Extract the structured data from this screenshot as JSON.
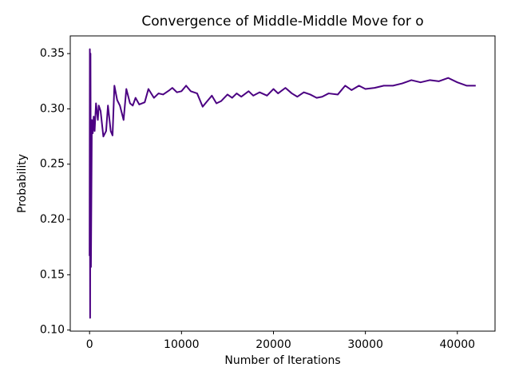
{
  "chart_data": {
    "type": "line",
    "title": "Convergence of Middle-Middle Move for o",
    "x_label": "Number of Iterations",
    "y_label": "Probability",
    "x": [
      0,
      30,
      60,
      100,
      150,
      250,
      350,
      450,
      550,
      700,
      900,
      1000,
      1200,
      1500,
      1800,
      2000,
      2300,
      2500,
      2700,
      3000,
      3300,
      3700,
      4000,
      4400,
      4700,
      5000,
      5400,
      6000,
      6400,
      7000,
      7500,
      8000,
      8700,
      9000,
      9500,
      10000,
      10500,
      11000,
      11700,
      12300,
      12700,
      13300,
      13800,
      14300,
      15000,
      15500,
      16000,
      16500,
      17300,
      17800,
      18500,
      19300,
      20000,
      20500,
      21300,
      22000,
      22600,
      23300,
      24000,
      24700,
      25300,
      26000,
      27000,
      27800,
      28500,
      29300,
      30000,
      31000,
      32000,
      33000,
      34000,
      35000,
      36000,
      37000,
      38000,
      39000,
      40000,
      41000,
      42000
    ],
    "series": [
      {
        "name": "o",
        "color": "#4b0082",
        "values": [
          0.167,
          0.354,
          0.111,
          0.35,
          0.157,
          0.29,
          0.278,
          0.293,
          0.28,
          0.305,
          0.29,
          0.303,
          0.298,
          0.275,
          0.28,
          0.303,
          0.28,
          0.276,
          0.321,
          0.308,
          0.303,
          0.29,
          0.318,
          0.305,
          0.303,
          0.31,
          0.304,
          0.306,
          0.318,
          0.31,
          0.314,
          0.313,
          0.317,
          0.319,
          0.315,
          0.316,
          0.321,
          0.316,
          0.314,
          0.302,
          0.306,
          0.312,
          0.305,
          0.307,
          0.313,
          0.31,
          0.314,
          0.311,
          0.316,
          0.312,
          0.315,
          0.312,
          0.318,
          0.314,
          0.319,
          0.314,
          0.311,
          0.315,
          0.313,
          0.31,
          0.311,
          0.314,
          0.313,
          0.321,
          0.317,
          0.321,
          0.318,
          0.319,
          0.321,
          0.321,
          0.323,
          0.326,
          0.324,
          0.326,
          0.325,
          0.328,
          0.324,
          0.321,
          0.321
        ]
      }
    ],
    "xlim": [
      -2100,
      44100
    ],
    "ylim": [
      0.099,
      0.366
    ],
    "xticks": [
      0,
      10000,
      20000,
      30000,
      40000
    ],
    "yticks": [
      {
        "value": 0.1,
        "label": "0.10"
      },
      0.15,
      {
        "value": 0.2,
        "label": "0.20"
      },
      0.25,
      {
        "value": 0.3,
        "label": "0.30"
      },
      0.35
    ],
    "grid": false
  }
}
